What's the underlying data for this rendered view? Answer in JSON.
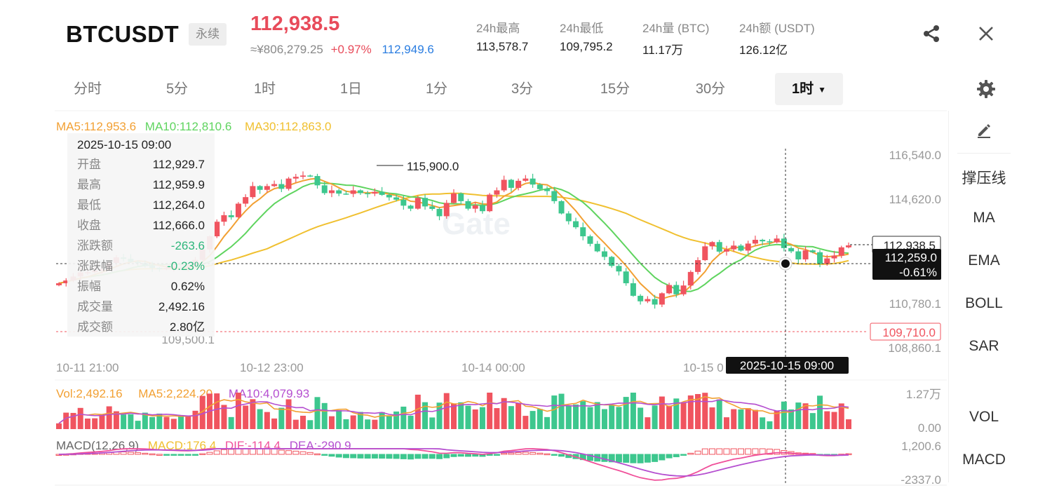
{
  "header": {
    "symbol": "BTCUSDT",
    "tag": "永续",
    "last_price": "112,938.5",
    "cny_price": "≈¥806,279.25",
    "change_pct": "+0.97%",
    "mark_price": "112,949.6",
    "stats": [
      {
        "label": "24h最高",
        "value": "113,578.7"
      },
      {
        "label": "24h最低",
        "value": "109,795.2"
      },
      {
        "label": "24h量 (BTC)",
        "value": "11.17万"
      },
      {
        "label": "24h额 (USDT)",
        "value": "126.12亿"
      }
    ],
    "icons": {
      "share": "share-icon",
      "close": "close-icon"
    }
  },
  "tabs": [
    {
      "label": "分时"
    },
    {
      "label": "5分"
    },
    {
      "label": "1时"
    },
    {
      "label": "1日"
    },
    {
      "label": "1分"
    },
    {
      "label": "3分"
    },
    {
      "label": "15分"
    },
    {
      "label": "30分"
    },
    {
      "label": "1时",
      "active": true
    }
  ],
  "right_panel": [
    "撑压线",
    "MA",
    "EMA",
    "BOLL",
    "SAR",
    "VOL",
    "MACD"
  ],
  "tooltip": {
    "date": "2025-10-15 09:00",
    "rows": [
      {
        "k": "开盘",
        "v": "112,929.7"
      },
      {
        "k": "最高",
        "v": "112,959.9"
      },
      {
        "k": "最低",
        "v": "112,264.0"
      },
      {
        "k": "收盘",
        "v": "112,666.0"
      },
      {
        "k": "涨跌额",
        "v": "-263.6",
        "down": true
      },
      {
        "k": "涨跌幅",
        "v": "-0.23%",
        "down": true
      },
      {
        "k": "振幅",
        "v": "0.62%"
      },
      {
        "k": "成交量",
        "v": "2,492.16"
      },
      {
        "k": "成交额",
        "v": "2.80亿"
      }
    ]
  },
  "chart_data": {
    "type": "candlestick",
    "ma_legend": {
      "ma5": "MA5:112,953.6",
      "ma10": "MA10:112,810.6",
      "ma30": "MA30:112,863.0"
    },
    "y_ticks": [
      "116,540.0",
      "114,620.0",
      "110,780.1",
      "108,860.1"
    ],
    "y_range": [
      108860.1,
      116540.0
    ],
    "x_labels": [
      "10-11 21:00",
      "10-12 23:00",
      "10-14 00:00",
      "10-15 0"
    ],
    "high_label": "115,900.0",
    "low_label": "109,500.1",
    "current_price_tag": "112,938.5",
    "crosshair_price": "112,259.0",
    "crosshair_pct": "-0.61%",
    "low_tag": "109,710.0",
    "crosshair_time": "2025-10-15 09:00",
    "vol_legend": {
      "vol": "Vol:2,492.16",
      "ma5": "MA5:2,224.20",
      "ma10": "MA10:4,079.93"
    },
    "vol_ticks": [
      "1.27万",
      "0.00"
    ],
    "macd_legend": {
      "title": "MACD(12,26,9)",
      "macd": "MACD:176.4",
      "dif": "DIF:-114.4",
      "dea": "DEA:-290.9"
    },
    "macd_ticks": [
      "1,200.6",
      "-2337.0"
    ],
    "watermark": "Gate",
    "colors": {
      "up": "#f0545f",
      "down": "#3dc78e",
      "ma5": "#f2a033",
      "ma10": "#5fd45f",
      "ma30": "#f0c030",
      "vol_ma10": "#b54fd0",
      "dif": "#f0509a",
      "dea": "#b54fd0"
    },
    "closes": [
      111430,
      111540,
      111700,
      111860,
      111870,
      111940,
      111980,
      112240,
      112460,
      112400,
      112280,
      112230,
      112120,
      112040,
      111990,
      112030,
      112090,
      112060,
      112130,
      112360,
      112780,
      113300,
      113880,
      114140,
      114060,
      114600,
      114860,
      115300,
      115150,
      115300,
      115380,
      115190,
      115600,
      115670,
      115720,
      115700,
      115330,
      115020,
      115130,
      115000,
      114990,
      115130,
      115020,
      115000,
      115070,
      114950,
      114850,
      114760,
      114520,
      114400,
      114830,
      114490,
      114390,
      114100,
      114630,
      115010,
      114700,
      114400,
      114530,
      114300,
      114960,
      115130,
      115550,
      115230,
      115510,
      115600,
      115360,
      115180,
      115100,
      114700,
      114210,
      113900,
      113660,
      113300,
      113000,
      112700,
      112480,
      112120,
      111900,
      111430,
      110930,
      110710,
      110800,
      110580,
      111030,
      111360,
      110990,
      111340,
      111880,
      112350,
      112900,
      113070,
      112690,
      112780,
      112930,
      112730,
      113010,
      113160,
      113100,
      113060,
      113210,
      112830,
      112700,
      112380,
      112740,
      112666,
      112200,
      112420,
      112530,
      112860,
      112938
    ]
  }
}
